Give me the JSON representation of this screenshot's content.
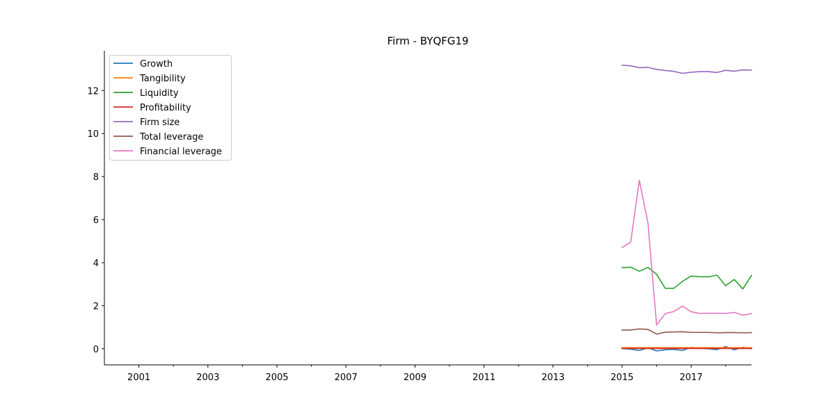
{
  "chart_data": {
    "type": "line",
    "title": "Firm - BYQFG19",
    "xlabel": "",
    "ylabel": "",
    "x_axis": "time (years)",
    "xlim": [
      2000.0,
      2018.75
    ],
    "ylim": [
      -0.75,
      13.85
    ],
    "xticks": [
      2001,
      2003,
      2005,
      2007,
      2009,
      2011,
      2013,
      2015,
      2017
    ],
    "xtick_labels": [
      "2001",
      "2003",
      "2005",
      "2007",
      "2009",
      "2011",
      "2013",
      "2015",
      "2017"
    ],
    "yticks": [
      0,
      2,
      4,
      6,
      8,
      10,
      12
    ],
    "ytick_labels": [
      "0",
      "2",
      "4",
      "6",
      "8",
      "10",
      "12"
    ],
    "grid": false,
    "legend_position": "upper-left",
    "x": [
      2015.0,
      2015.25,
      2015.5,
      2015.75,
      2016.0,
      2016.25,
      2016.5,
      2016.75,
      2017.0,
      2017.25,
      2017.5,
      2017.75,
      2018.0,
      2018.25,
      2018.5,
      2018.75
    ],
    "series": [
      {
        "name": "Growth",
        "color": "#1f77b4",
        "values": [
          0.01,
          -0.02,
          -0.08,
          0.04,
          -0.1,
          -0.05,
          -0.03,
          -0.08,
          0.06,
          0.02,
          0.0,
          -0.04,
          0.1,
          -0.05,
          0.07,
          0.0
        ]
      },
      {
        "name": "Tangibility",
        "color": "#ff7f0e",
        "values": [
          0.05,
          0.05,
          0.05,
          0.05,
          0.05,
          0.05,
          0.05,
          0.05,
          0.05,
          0.05,
          0.05,
          0.05,
          0.05,
          0.05,
          0.05,
          0.05
        ]
      },
      {
        "name": "Liquidity",
        "color": "#2ca02c",
        "values": [
          3.77,
          3.79,
          3.6,
          3.78,
          3.46,
          2.81,
          2.81,
          3.13,
          3.38,
          3.35,
          3.34,
          3.42,
          2.93,
          3.22,
          2.78,
          3.41
        ]
      },
      {
        "name": "Profitability",
        "color": "#d62728",
        "values": [
          0.01,
          0.01,
          0.01,
          0.01,
          0.01,
          0.01,
          0.01,
          0.01,
          0.01,
          0.01,
          0.01,
          0.01,
          0.01,
          0.01,
          0.01,
          0.01
        ]
      },
      {
        "name": "Firm size",
        "color": "#9467bd",
        "values": [
          13.18,
          13.15,
          13.06,
          13.08,
          12.98,
          12.93,
          12.89,
          12.8,
          12.85,
          12.88,
          12.88,
          12.84,
          12.94,
          12.9,
          12.96,
          12.95
        ]
      },
      {
        "name": "Total leverage",
        "color": "#8c564b",
        "values": [
          0.87,
          0.87,
          0.92,
          0.9,
          0.68,
          0.77,
          0.78,
          0.79,
          0.76,
          0.76,
          0.76,
          0.74,
          0.75,
          0.75,
          0.74,
          0.75
        ]
      },
      {
        "name": "Financial leverage",
        "color": "#e377c2",
        "values": [
          4.71,
          4.95,
          7.83,
          5.85,
          1.1,
          1.63,
          1.73,
          1.98,
          1.72,
          1.64,
          1.65,
          1.65,
          1.64,
          1.69,
          1.56,
          1.63
        ]
      }
    ]
  }
}
